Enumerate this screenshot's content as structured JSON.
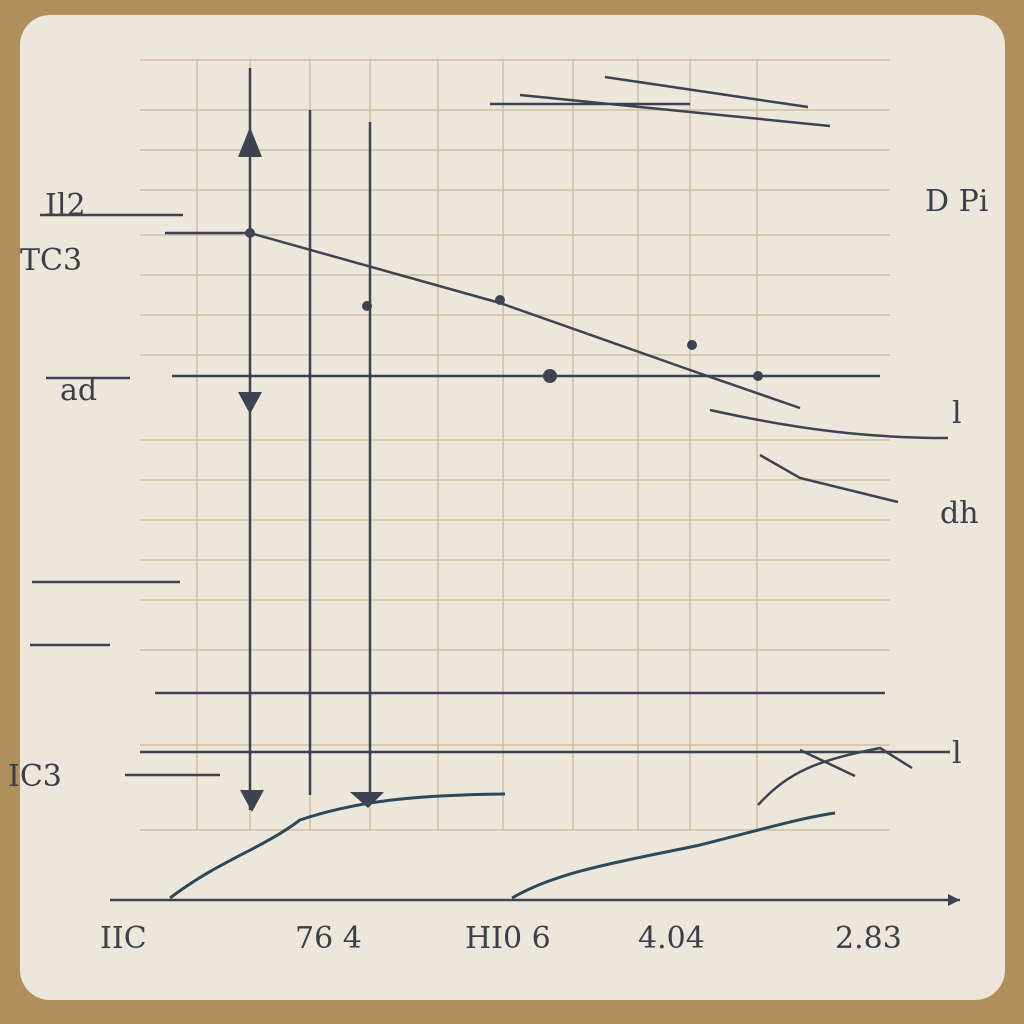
{
  "header": {
    "left_labels": [
      "Il2",
      "TC3",
      "ad",
      "IC3"
    ],
    "right_labels": [
      "D Pi",
      "l",
      "dh",
      "l"
    ]
  },
  "axis": {
    "labels": [
      "IIC",
      "76 4",
      "HI0 6",
      "4.04",
      "2.83"
    ]
  }
}
